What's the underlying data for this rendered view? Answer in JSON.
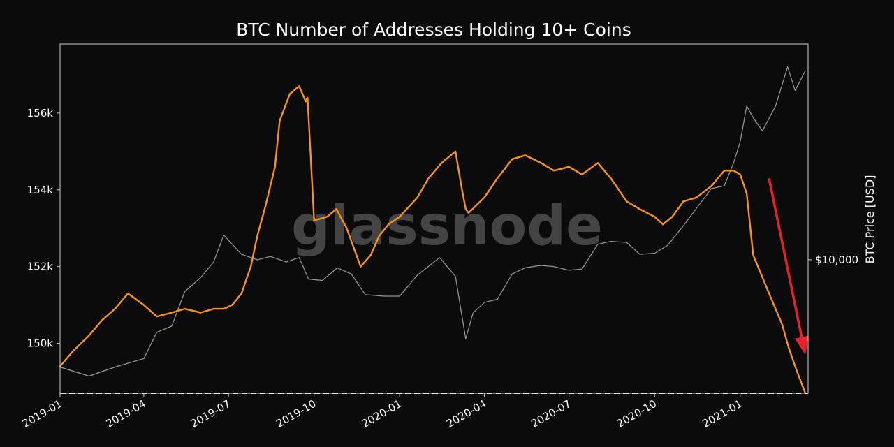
{
  "chart_data": {
    "type": "line",
    "title": "BTC Number of Addresses Holding 10+ Coins",
    "watermark": "glassnode",
    "xlabel": "",
    "ylabel": "",
    "y2label": "BTC Price [USD]",
    "xlim": [
      "2019-01-01",
      "2021-03-15"
    ],
    "ylim": [
      148700,
      157800
    ],
    "yticks": [
      150000,
      152000,
      154000,
      156000
    ],
    "ytick_labels": [
      "150k",
      "152k",
      "154k",
      "156k"
    ],
    "y2ticks": [
      10000
    ],
    "y2tick_labels": [
      "$10,000"
    ],
    "y2_scale": "log",
    "y2lim": [
      3000,
      70000
    ],
    "xticks": [
      "2019-01-01",
      "2019-04-01",
      "2019-07-01",
      "2019-10-01",
      "2020-01-01",
      "2020-04-01",
      "2020-07-01",
      "2020-10-01",
      "2021-01-01"
    ],
    "xtick_labels": [
      "2019-01",
      "2019-04",
      "2019-07",
      "2019-10",
      "2020-01",
      "2020-04",
      "2020-07",
      "2020-10",
      "2021-01"
    ],
    "grid": false,
    "reference_line": {
      "y": 148700,
      "style": "dashed",
      "color": "#ffffff"
    },
    "annotation": {
      "type": "arrow",
      "color": "#e8202a",
      "from": [
        "2021-02-01",
        154300
      ],
      "to": [
        "2021-03-12",
        149700
      ]
    },
    "series": [
      {
        "axis": "left",
        "color": "#f7931a",
        "x": [
          "2019-01-01",
          "2019-01-15",
          "2019-02-01",
          "2019-02-15",
          "2019-03-01",
          "2019-03-15",
          "2019-04-01",
          "2019-04-15",
          "2019-05-01",
          "2019-05-15",
          "2019-06-01",
          "2019-06-15",
          "2019-06-26",
          "2019-07-05",
          "2019-07-15",
          "2019-07-25",
          "2019-08-01",
          "2019-08-10",
          "2019-08-20",
          "2019-08-25",
          "2019-09-05",
          "2019-09-15",
          "2019-09-22",
          "2019-09-24",
          "2019-10-01",
          "2019-10-15",
          "2019-10-25",
          "2019-11-05",
          "2019-11-20",
          "2019-12-01",
          "2019-12-10",
          "2019-12-20",
          "2020-01-01",
          "2020-01-20",
          "2020-02-01",
          "2020-02-15",
          "2020-03-01",
          "2020-03-08",
          "2020-03-12",
          "2020-03-15",
          "2020-04-01",
          "2020-04-15",
          "2020-05-01",
          "2020-05-15",
          "2020-06-01",
          "2020-06-15",
          "2020-07-01",
          "2020-07-15",
          "2020-08-01",
          "2020-08-15",
          "2020-09-01",
          "2020-09-15",
          "2020-10-01",
          "2020-10-10",
          "2020-10-20",
          "2020-11-01",
          "2020-11-15",
          "2020-12-01",
          "2020-12-15",
          "2020-12-25",
          "2021-01-01",
          "2021-01-08",
          "2021-01-15",
          "2021-02-01",
          "2021-02-15",
          "2021-02-22",
          "2021-03-01",
          "2021-03-12"
        ],
        "y": [
          149400,
          149800,
          150200,
          150600,
          150900,
          151300,
          151000,
          150700,
          150800,
          150900,
          150800,
          150900,
          150900,
          151000,
          151300,
          152000,
          152800,
          153600,
          154600,
          155800,
          156500,
          156700,
          156300,
          156400,
          153200,
          153300,
          153500,
          153000,
          152000,
          152300,
          152800,
          153100,
          153300,
          153800,
          154300,
          154700,
          155000,
          154000,
          153500,
          153400,
          153800,
          154300,
          154800,
          154900,
          154700,
          154500,
          154600,
          154400,
          154700,
          154300,
          153700,
          153500,
          153300,
          153100,
          153300,
          153700,
          153800,
          154100,
          154500,
          154500,
          154400,
          153900,
          152300,
          151300,
          150500,
          149900,
          149400,
          148700
        ]
      },
      {
        "axis": "right",
        "color": "#9a9a9a",
        "x": [
          "2019-01-01",
          "2019-02-01",
          "2019-03-01",
          "2019-04-01",
          "2019-04-15",
          "2019-05-01",
          "2019-05-15",
          "2019-06-01",
          "2019-06-15",
          "2019-06-26",
          "2019-07-15",
          "2019-08-01",
          "2019-08-15",
          "2019-09-01",
          "2019-09-15",
          "2019-09-25",
          "2019-10-10",
          "2019-10-26",
          "2019-11-10",
          "2019-11-25",
          "2019-12-15",
          "2020-01-01",
          "2020-01-20",
          "2020-02-13",
          "2020-03-01",
          "2020-03-12",
          "2020-03-20",
          "2020-04-01",
          "2020-04-15",
          "2020-05-01",
          "2020-05-15",
          "2020-06-01",
          "2020-06-15",
          "2020-07-01",
          "2020-07-15",
          "2020-08-01",
          "2020-08-15",
          "2020-09-01",
          "2020-09-15",
          "2020-10-01",
          "2020-10-15",
          "2020-11-01",
          "2020-11-15",
          "2020-12-01",
          "2020-12-15",
          "2020-12-25",
          "2021-01-01",
          "2021-01-08",
          "2021-01-15",
          "2021-01-25",
          "2021-02-08",
          "2021-02-21",
          "2021-03-01",
          "2021-03-12"
        ],
        "y": [
          3800,
          3500,
          3800,
          4100,
          5200,
          5500,
          7500,
          8500,
          9800,
          12500,
          10500,
          10000,
          10300,
          9800,
          10200,
          8400,
          8300,
          9300,
          8800,
          7300,
          7200,
          7200,
          8700,
          10200,
          8600,
          4900,
          6200,
          6800,
          7000,
          8800,
          9300,
          9500,
          9400,
          9100,
          9200,
          11500,
          11800,
          11700,
          10500,
          10600,
          11400,
          13600,
          15900,
          19000,
          19500,
          24000,
          29000,
          40000,
          36000,
          32000,
          40000,
          57000,
          46000,
          55000
        ]
      }
    ]
  }
}
